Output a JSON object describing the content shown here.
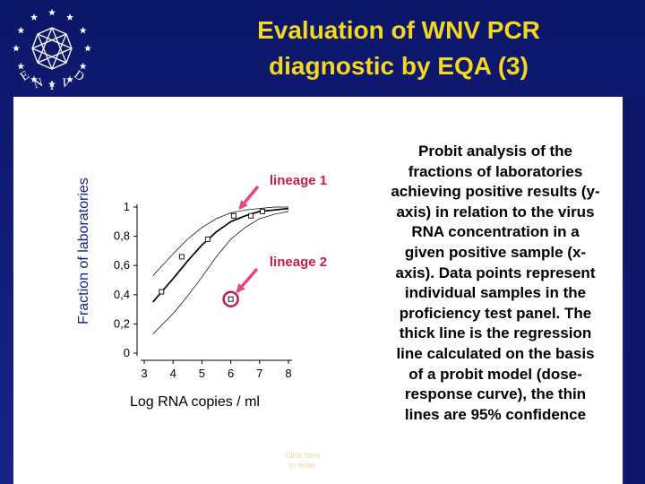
{
  "slide": {
    "title_lines": [
      "Evaluation of WNV PCR",
      "diagnostic by EQA (3)"
    ],
    "description_lines": [
      "Probit analysis of the",
      "fractions of laboratories",
      "achieving positive results (y-",
      "axis) in relation to the virus",
      "RNA concentration in a",
      "given positive sample (x-",
      "axis). Data points represent",
      "individual samples in the",
      "proficiency test panel. The",
      "thick line is the regression",
      "line calculated on the basis",
      "of a probit model (dose-",
      "response curve), the thin",
      "lines are 95% confidence"
    ],
    "watermark_lines": [
      "Click here",
      "to enter"
    ],
    "logo_text": "ENIVD"
  },
  "colors": {
    "background": "#0f1a6e",
    "title": "#f4d71e",
    "ylabel": "#0f1f8a",
    "annotation": "#c41e4a",
    "arrow": "#e8457a",
    "stars": "#ffffff"
  },
  "chart_data": {
    "type": "scatter",
    "xlabel": "Log RNA copies / ml",
    "ylabel": "Fraction of laboratories",
    "xlim": [
      3,
      8
    ],
    "ylim": [
      0,
      1
    ],
    "x_ticks": [
      "3",
      "4",
      "5",
      "6",
      "7",
      "8"
    ],
    "y_ticks": [
      "0",
      "0,2",
      "0,4",
      "0,6",
      "0,8",
      "1"
    ],
    "points": [
      {
        "x": 3.6,
        "y": 0.42
      },
      {
        "x": 4.3,
        "y": 0.66
      },
      {
        "x": 5.2,
        "y": 0.78
      },
      {
        "x": 6.0,
        "y": 0.37
      },
      {
        "x": 6.1,
        "y": 0.94
      },
      {
        "x": 6.7,
        "y": 0.94
      },
      {
        "x": 7.1,
        "y": 0.97
      }
    ],
    "regression": [
      {
        "x": 3.3,
        "y": 0.35
      },
      {
        "x": 4.0,
        "y": 0.51
      },
      {
        "x": 4.5,
        "y": 0.63
      },
      {
        "x": 5.0,
        "y": 0.74
      },
      {
        "x": 5.5,
        "y": 0.83
      },
      {
        "x": 6.0,
        "y": 0.9
      },
      {
        "x": 6.5,
        "y": 0.94
      },
      {
        "x": 7.0,
        "y": 0.97
      },
      {
        "x": 7.5,
        "y": 0.98
      },
      {
        "x": 8.0,
        "y": 0.99
      }
    ],
    "confidence_upper": [
      {
        "x": 3.3,
        "y": 0.53
      },
      {
        "x": 4.0,
        "y": 0.68
      },
      {
        "x": 4.5,
        "y": 0.78
      },
      {
        "x": 5.0,
        "y": 0.86
      },
      {
        "x": 5.5,
        "y": 0.92
      },
      {
        "x": 6.0,
        "y": 0.96
      },
      {
        "x": 6.5,
        "y": 0.98
      },
      {
        "x": 7.0,
        "y": 0.99
      },
      {
        "x": 7.5,
        "y": 1.0
      },
      {
        "x": 8.0,
        "y": 1.0
      }
    ],
    "confidence_lower": [
      {
        "x": 3.3,
        "y": 0.13
      },
      {
        "x": 4.0,
        "y": 0.27
      },
      {
        "x": 4.5,
        "y": 0.39
      },
      {
        "x": 5.0,
        "y": 0.52
      },
      {
        "x": 5.5,
        "y": 0.66
      },
      {
        "x": 6.0,
        "y": 0.78
      },
      {
        "x": 6.5,
        "y": 0.86
      },
      {
        "x": 7.0,
        "y": 0.92
      },
      {
        "x": 7.5,
        "y": 0.95
      },
      {
        "x": 8.0,
        "y": 0.97
      }
    ],
    "annotations": [
      {
        "text": "lineage 1",
        "target": {
          "x": 6.1,
          "y": 0.94
        },
        "circled": false
      },
      {
        "text": "lineage 2",
        "target": {
          "x": 6.0,
          "y": 0.37
        },
        "circled": true
      }
    ]
  }
}
